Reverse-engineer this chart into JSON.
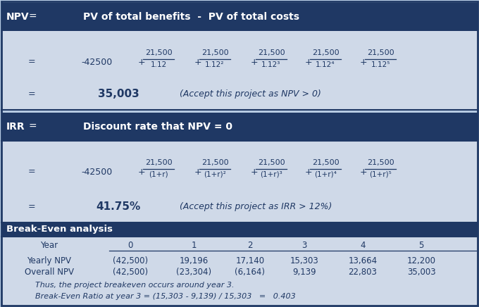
{
  "bg_color": "#b8cce4",
  "header_color": "#1f3864",
  "light_blue": "#cfd9e8",
  "dark_text": "#1f3864",
  "light_text": "#ffffff",
  "fracs_x": [
    225,
    305,
    385,
    462,
    540
  ],
  "exp_npv": [
    "",
    "²",
    "³",
    "⁴",
    "⁵"
  ],
  "exp_irr": [
    "",
    "²",
    "³",
    "⁴",
    "⁵"
  ],
  "years": [
    "Year",
    "0",
    "1",
    "2",
    "3",
    "4",
    "5"
  ],
  "yearly_npv": [
    "Yearly NPV",
    "(42,500)",
    "19,196",
    "17,140",
    "15,303",
    "13,664",
    "12,200"
  ],
  "overall_npv": [
    "Overall NPV",
    "(42,500)",
    "(23,304)",
    "(6,164)",
    "9,139",
    "22,803",
    "35,003"
  ],
  "footnote1": "Thus, the project breakeven occurs around year 3.",
  "footnote2": "Break-Even Ratio at year 3 = (15,303 - 9,139) / 15,303   =   0.403"
}
